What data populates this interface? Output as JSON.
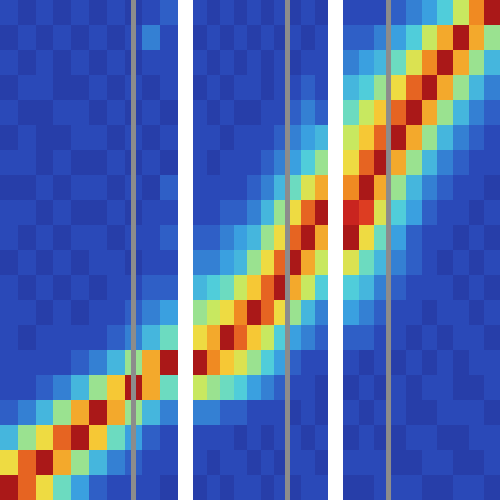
{
  "chart_data": [
    {
      "type": "heatmap",
      "xlim": [
        0,
        10
      ],
      "ylim": [
        0,
        20
      ],
      "zlim": [
        0,
        1
      ],
      "tick_labels": false,
      "events": [
        7.5
      ],
      "cells": [
        [
          0.1,
          0.05,
          0.1,
          0.05,
          0.1,
          0.05,
          0.1,
          0.05,
          0.1,
          0.15
        ],
        [
          0.05,
          0.1,
          0.05,
          0.1,
          0.05,
          0.1,
          0.05,
          0.1,
          0.2,
          0.1
        ],
        [
          0.1,
          0.05,
          0.1,
          0.05,
          0.1,
          0.05,
          0.1,
          0.05,
          0.1,
          0.1
        ],
        [
          0.05,
          0.1,
          0.1,
          0.05,
          0.05,
          0.1,
          0.05,
          0.1,
          0.05,
          0.1
        ],
        [
          0.1,
          0.05,
          0.05,
          0.1,
          0.1,
          0.05,
          0.1,
          0.05,
          0.1,
          0.05
        ],
        [
          0.05,
          0.1,
          0.05,
          0.05,
          0.1,
          0.1,
          0.05,
          0.1,
          0.05,
          0.1
        ],
        [
          0.1,
          0.1,
          0.05,
          0.1,
          0.05,
          0.05,
          0.1,
          0.05,
          0.1,
          0.05
        ],
        [
          0.05,
          0.05,
          0.1,
          0.05,
          0.1,
          0.1,
          0.05,
          0.1,
          0.05,
          0.15
        ],
        [
          0.1,
          0.1,
          0.05,
          0.1,
          0.05,
          0.05,
          0.1,
          0.05,
          0.1,
          0.1
        ],
        [
          0.1,
          0.05,
          0.1,
          0.05,
          0.1,
          0.1,
          0.05,
          0.1,
          0.1,
          0.15
        ],
        [
          0.05,
          0.1,
          0.05,
          0.1,
          0.05,
          0.1,
          0.1,
          0.05,
          0.1,
          0.1
        ],
        [
          0.1,
          0.05,
          0.1,
          0.05,
          0.1,
          0.05,
          0.1,
          0.1,
          0.15,
          0.15
        ],
        [
          0.1,
          0.1,
          0.05,
          0.1,
          0.05,
          0.1,
          0.1,
          0.15,
          0.2,
          0.25
        ],
        [
          0.1,
          0.05,
          0.1,
          0.1,
          0.1,
          0.1,
          0.15,
          0.2,
          0.3,
          0.4
        ],
        [
          0.1,
          0.1,
          0.1,
          0.1,
          0.15,
          0.2,
          0.3,
          0.45,
          0.7,
          0.95
        ],
        [
          0.1,
          0.1,
          0.15,
          0.2,
          0.3,
          0.45,
          0.65,
          0.95,
          0.7,
          0.4
        ],
        [
          0.15,
          0.2,
          0.3,
          0.45,
          0.7,
          0.95,
          0.7,
          0.45,
          0.3,
          0.2
        ],
        [
          0.3,
          0.45,
          0.6,
          0.8,
          0.95,
          0.65,
          0.4,
          0.25,
          0.15,
          0.1
        ],
        [
          0.6,
          0.8,
          0.95,
          0.7,
          0.45,
          0.3,
          0.2,
          0.15,
          0.1,
          0.1
        ],
        [
          0.95,
          0.8,
          0.6,
          0.4,
          0.25,
          0.15,
          0.1,
          0.1,
          0.1,
          0.05
        ]
      ]
    },
    {
      "type": "heatmap",
      "xlim": [
        0,
        10
      ],
      "ylim": [
        0,
        20
      ],
      "zlim": [
        0,
        1
      ],
      "tick_labels": false,
      "events": [
        7.0
      ],
      "cells": [
        [
          0.1,
          0.05,
          0.1,
          0.05,
          0.1,
          0.05,
          0.1,
          0.05,
          0.1,
          0.05
        ],
        [
          0.05,
          0.1,
          0.05,
          0.1,
          0.05,
          0.1,
          0.05,
          0.1,
          0.05,
          0.1
        ],
        [
          0.1,
          0.05,
          0.1,
          0.05,
          0.1,
          0.05,
          0.1,
          0.05,
          0.1,
          0.1
        ],
        [
          0.05,
          0.1,
          0.05,
          0.1,
          0.1,
          0.05,
          0.1,
          0.1,
          0.15,
          0.1
        ],
        [
          0.1,
          0.05,
          0.1,
          0.05,
          0.05,
          0.1,
          0.1,
          0.15,
          0.2,
          0.15
        ],
        [
          0.1,
          0.1,
          0.05,
          0.1,
          0.1,
          0.1,
          0.15,
          0.2,
          0.25,
          0.3
        ],
        [
          0.1,
          0.05,
          0.1,
          0.1,
          0.1,
          0.15,
          0.2,
          0.25,
          0.35,
          0.45
        ],
        [
          0.1,
          0.1,
          0.1,
          0.1,
          0.15,
          0.2,
          0.3,
          0.4,
          0.55,
          0.7
        ],
        [
          0.1,
          0.1,
          0.15,
          0.15,
          0.2,
          0.3,
          0.45,
          0.6,
          0.8,
          0.95
        ],
        [
          0.15,
          0.15,
          0.2,
          0.25,
          0.3,
          0.45,
          0.6,
          0.8,
          0.95,
          0.7
        ],
        [
          0.2,
          0.2,
          0.25,
          0.3,
          0.45,
          0.6,
          0.8,
          0.95,
          0.7,
          0.5
        ],
        [
          0.3,
          0.35,
          0.4,
          0.5,
          0.65,
          0.8,
          0.95,
          0.7,
          0.5,
          0.35
        ],
        [
          0.45,
          0.5,
          0.6,
          0.75,
          0.95,
          0.8,
          0.6,
          0.45,
          0.3,
          0.2
        ],
        [
          0.6,
          0.7,
          0.95,
          0.8,
          0.65,
          0.5,
          0.35,
          0.25,
          0.2,
          0.15
        ],
        [
          0.95,
          0.75,
          0.65,
          0.55,
          0.45,
          0.35,
          0.25,
          0.15,
          0.1,
          0.1
        ],
        [
          0.5,
          0.45,
          0.4,
          0.35,
          0.25,
          0.2,
          0.15,
          0.1,
          0.1,
          0.05
        ],
        [
          0.2,
          0.2,
          0.15,
          0.15,
          0.1,
          0.1,
          0.1,
          0.05,
          0.1,
          0.05
        ],
        [
          0.1,
          0.1,
          0.1,
          0.05,
          0.1,
          0.05,
          0.1,
          0.1,
          0.05,
          0.1
        ],
        [
          0.1,
          0.05,
          0.1,
          0.1,
          0.05,
          0.1,
          0.05,
          0.1,
          0.1,
          0.05
        ],
        [
          0.05,
          0.1,
          0.05,
          0.1,
          0.1,
          0.05,
          0.1,
          0.05,
          0.1,
          0.1
        ]
      ]
    },
    {
      "type": "heatmap",
      "xlim": [
        0,
        10
      ],
      "ylim": [
        0,
        20
      ],
      "zlim": [
        0,
        1
      ],
      "tick_labels": false,
      "events": [
        2.9
      ],
      "cells": [
        [
          0.1,
          0.1,
          0.1,
          0.15,
          0.2,
          0.25,
          0.35,
          0.5,
          0.75,
          0.95
        ],
        [
          0.15,
          0.15,
          0.2,
          0.25,
          0.35,
          0.5,
          0.7,
          0.95,
          0.7,
          0.45
        ],
        [
          0.2,
          0.25,
          0.3,
          0.4,
          0.55,
          0.75,
          0.95,
          0.7,
          0.45,
          0.3
        ],
        [
          0.3,
          0.35,
          0.45,
          0.6,
          0.8,
          0.95,
          0.7,
          0.45,
          0.3,
          0.2
        ],
        [
          0.4,
          0.5,
          0.65,
          0.8,
          0.95,
          0.7,
          0.45,
          0.3,
          0.2,
          0.15
        ],
        [
          0.5,
          0.65,
          0.8,
          0.95,
          0.7,
          0.45,
          0.3,
          0.2,
          0.15,
          0.1
        ],
        [
          0.6,
          0.8,
          0.95,
          0.7,
          0.45,
          0.3,
          0.2,
          0.15,
          0.1,
          0.1
        ],
        [
          0.75,
          0.95,
          0.7,
          0.45,
          0.3,
          0.2,
          0.15,
          0.1,
          0.1,
          0.05
        ],
        [
          0.9,
          0.85,
          0.55,
          0.35,
          0.25,
          0.15,
          0.1,
          0.1,
          0.05,
          0.1
        ],
        [
          0.95,
          0.6,
          0.4,
          0.25,
          0.15,
          0.1,
          0.1,
          0.05,
          0.1,
          0.05
        ],
        [
          0.55,
          0.4,
          0.3,
          0.2,
          0.15,
          0.1,
          0.05,
          0.1,
          0.05,
          0.1
        ],
        [
          0.35,
          0.3,
          0.2,
          0.15,
          0.1,
          0.1,
          0.1,
          0.05,
          0.1,
          0.05
        ],
        [
          0.25,
          0.2,
          0.15,
          0.1,
          0.1,
          0.05,
          0.1,
          0.1,
          0.05,
          0.1
        ],
        [
          0.15,
          0.15,
          0.1,
          0.1,
          0.05,
          0.1,
          0.05,
          0.1,
          0.1,
          0.05
        ],
        [
          0.1,
          0.05,
          0.1,
          0.05,
          0.1,
          0.05,
          0.1,
          0.05,
          0.1,
          0.1
        ],
        [
          0.05,
          0.1,
          0.05,
          0.1,
          0.05,
          0.1,
          0.1,
          0.05,
          0.05,
          0.1
        ],
        [
          0.1,
          0.05,
          0.1,
          0.1,
          0.05,
          0.05,
          0.1,
          0.1,
          0.1,
          0.05
        ],
        [
          0.05,
          0.1,
          0.05,
          0.05,
          0.1,
          0.1,
          0.05,
          0.05,
          0.1,
          0.1
        ],
        [
          0.1,
          0.1,
          0.1,
          0.05,
          0.05,
          0.1,
          0.1,
          0.05,
          0.05,
          0.1
        ],
        [
          0.05,
          0.05,
          0.1,
          0.1,
          0.1,
          0.05,
          0.05,
          0.1,
          0.1,
          0.05
        ]
      ]
    }
  ]
}
